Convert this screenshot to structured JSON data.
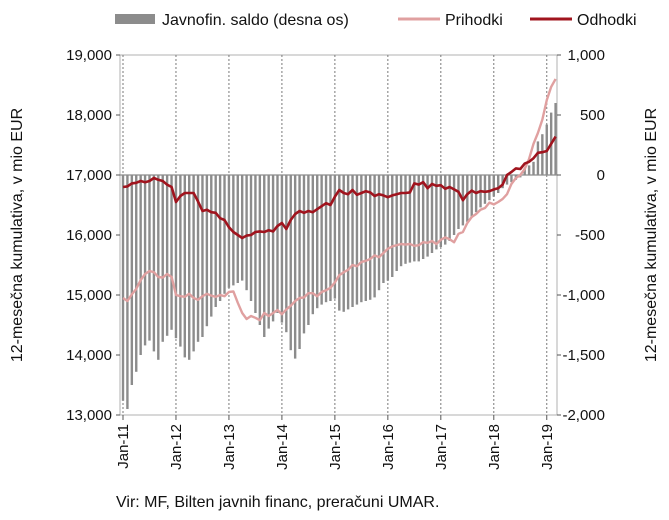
{
  "chart_data": {
    "type": "bar+line",
    "legend": {
      "position": "top",
      "items": [
        {
          "label": "Javnofin. saldo (desna os)",
          "kind": "bar",
          "color": "#8c8c8c"
        },
        {
          "label": "Prihodki",
          "kind": "line",
          "color": "#e0a0a0"
        },
        {
          "label": "Odhodki",
          "kind": "line",
          "color": "#a0141e"
        }
      ]
    },
    "y_left": {
      "label": "12-mesečna kumulativa, v mio EUR",
      "range": [
        13000,
        19000
      ],
      "ticks": [
        "13,000",
        "14,000",
        "15,000",
        "16,000",
        "17,000",
        "18,000",
        "19,000"
      ],
      "tick_values": [
        13000,
        14000,
        15000,
        16000,
        17000,
        18000,
        19000
      ]
    },
    "y_right": {
      "label": "12-mesečna kumulativa, v mio EUR",
      "range": [
        -2000,
        1000
      ],
      "ticks": [
        "-2,000",
        "-1,500",
        "-1,000",
        "-500",
        "0",
        "500",
        "1,000"
      ],
      "tick_values": [
        -2000,
        -1500,
        -1000,
        -500,
        0,
        500,
        1000
      ]
    },
    "x": {
      "tick_labels": [
        "Jan-11",
        "Jan-12",
        "Jan-13",
        "Jan-14",
        "Jan-15",
        "Jan-16",
        "Jan-17",
        "Jan-18",
        "Jan-19"
      ],
      "start": "Jan-11",
      "months": 99
    },
    "gridlines": "vertical dotted at each January",
    "series": [
      {
        "name": "Javnofin. saldo (desna os)",
        "type": "bar",
        "axis": "right",
        "values": [
          -1880,
          -1950,
          -1750,
          -1640,
          -1500,
          -1420,
          -1380,
          -1470,
          -1540,
          -1390,
          -1340,
          -1290,
          -1360,
          -1430,
          -1520,
          -1540,
          -1470,
          -1390,
          -1350,
          -1260,
          -1180,
          -1100,
          -1050,
          -990,
          -940,
          -920,
          -900,
          -880,
          -960,
          -1050,
          -1150,
          -1250,
          -1350,
          -1280,
          -1220,
          -1150,
          -1230,
          -1310,
          -1460,
          -1530,
          -1450,
          -1320,
          -1250,
          -1160,
          -1110,
          -1080,
          -1060,
          -1050,
          -1030,
          -1130,
          -1140,
          -1120,
          -1100,
          -1080,
          -1060,
          -1050,
          -1040,
          -1020,
          -960,
          -900,
          -880,
          -850,
          -800,
          -760,
          -740,
          -730,
          -720,
          -720,
          -700,
          -680,
          -650,
          -620,
          -600,
          -580,
          -550,
          -500,
          -450,
          -420,
          -390,
          -350,
          -310,
          -270,
          -240,
          -210,
          -180,
          -150,
          -110,
          -80,
          -60,
          -40,
          -20,
          60,
          80,
          110,
          280,
          340,
          420,
          520,
          600
        ]
      },
      {
        "name": "Prihodki",
        "type": "line",
        "axis": "left",
        "values": [
          14950,
          14900,
          15010,
          15100,
          15250,
          15350,
          15400,
          15380,
          15300,
          15290,
          15350,
          15300,
          15000,
          14980,
          14970,
          15020,
          14950,
          14920,
          14980,
          15020,
          14990,
          14970,
          15000,
          14980,
          15050,
          15060,
          14870,
          14700,
          14600,
          14650,
          14620,
          14580,
          14700,
          14650,
          14700,
          14750,
          14680,
          14760,
          14820,
          14900,
          14950,
          14960,
          15030,
          15030,
          14980,
          15050,
          15080,
          15120,
          15210,
          15330,
          15380,
          15420,
          15500,
          15480,
          15550,
          15570,
          15600,
          15660,
          15630,
          15700,
          15770,
          15810,
          15830,
          15850,
          15840,
          15850,
          15820,
          15830,
          15880,
          15870,
          15900,
          15850,
          15920,
          15960,
          15930,
          15880,
          16020,
          16050,
          16200,
          16300,
          16350,
          16420,
          16450,
          16540,
          16510,
          16550,
          16600,
          16680,
          16850,
          16950,
          17000,
          17100,
          17270,
          17520,
          17700,
          17920,
          18250,
          18470,
          18600
        ]
      },
      {
        "name": "Odhodki",
        "type": "line",
        "axis": "left",
        "values": [
          16800,
          16810,
          16860,
          16870,
          16900,
          16880,
          16900,
          16950,
          16920,
          16900,
          16840,
          16800,
          16550,
          16650,
          16700,
          16700,
          16700,
          16560,
          16400,
          16420,
          16380,
          16370,
          16280,
          16250,
          16130,
          16050,
          16000,
          15950,
          15990,
          16000,
          16050,
          16060,
          16050,
          16080,
          16060,
          16150,
          16200,
          16100,
          16250,
          16350,
          16400,
          16370,
          16400,
          16380,
          16430,
          16480,
          16530,
          16500,
          16640,
          16750,
          16700,
          16680,
          16750,
          16670,
          16700,
          16730,
          16710,
          16650,
          16680,
          16660,
          16630,
          16660,
          16680,
          16700,
          16700,
          16710,
          16860,
          16840,
          16880,
          16780,
          16850,
          16820,
          16830,
          16770,
          16800,
          16760,
          16720,
          16580,
          16680,
          16740,
          16700,
          16730,
          16720,
          16730,
          16760,
          16780,
          16840,
          17000,
          17050,
          17110,
          17100,
          17190,
          17220,
          17280,
          17370,
          17380,
          17400,
          17520,
          17640
        ]
      }
    ],
    "source": "Vir: MF, Bilten javnih financ, preračuni UMAR."
  }
}
